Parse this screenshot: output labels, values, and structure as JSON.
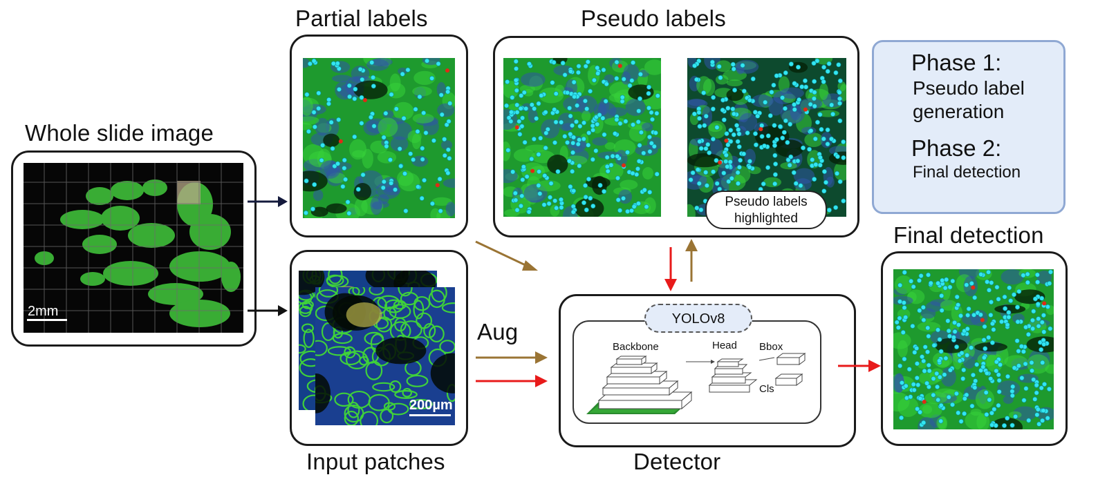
{
  "titles": {
    "whole_slide": "Whole slide image",
    "partial": "Partial labels",
    "pseudo": "Pseudo labels",
    "input": "Input patches",
    "detector": "Detector",
    "final": "Final detection",
    "aug": "Aug"
  },
  "scale_bars": {
    "wsi": "2mm",
    "patch": "200µm"
  },
  "pseudo_highlight": {
    "line1": "Pseudo labels",
    "line2": "highlighted"
  },
  "detector": {
    "model": "YOLOv8",
    "backbone": "Backbone",
    "head": "Head",
    "bbox": "Bbox",
    "cls": "Cls"
  },
  "legend": {
    "phase1_title": "Phase 1:",
    "phase1_line1": "Pseudo label",
    "phase1_line2": "generation",
    "phase2_title": "Phase 2:",
    "phase2_desc": "Final detection",
    "phase1_color": "#9a7434",
    "phase2_color": "#e81a1a"
  },
  "colors": {
    "navy_arrow": "#141a3c",
    "black_arrow": "#111111",
    "tissue": "#3fcf3a",
    "cell_dot": "#33e6f0",
    "neg_dot": "#e02a16"
  }
}
